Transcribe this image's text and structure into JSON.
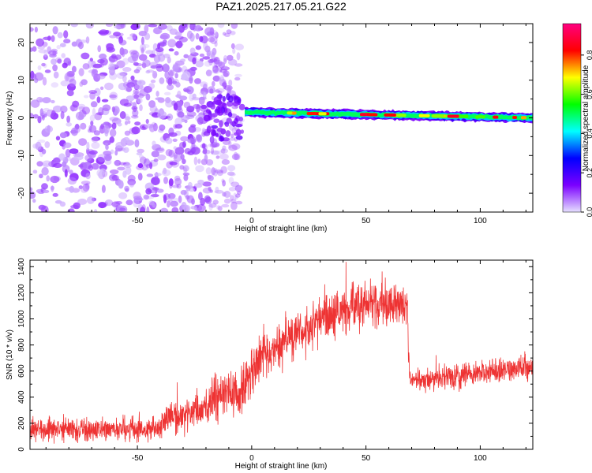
{
  "page_title": "PAZ1.2025.217.05.21.G22",
  "chart_data": [
    {
      "type": "heatmap",
      "xlabel": "Height of straight line (km)",
      "ylabel": "Frequency (Hz)",
      "xlim": [
        -97,
        123
      ],
      "ylim": [
        -25,
        25
      ],
      "xticks": [
        -50,
        0,
        50,
        100
      ],
      "yticks": [
        -20,
        -10,
        0,
        10,
        20
      ],
      "colorbar": {
        "label": "Normalized spectral amplitude",
        "range": [
          0,
          0.96
        ],
        "ticks": [
          "0.0",
          "0.2",
          "0.4",
          "0.6",
          "0.8"
        ],
        "tick_values": [
          0.0,
          0.2,
          0.4,
          0.6,
          0.8
        ],
        "colors": [
          "#e6e0ff",
          "#7b00ff",
          "#0000ff",
          "#00ffff",
          "#00ff00",
          "#ffff00",
          "#ff0000",
          "#ff0080"
        ]
      },
      "noise_region": {
        "x_range": [
          -97,
          -5
        ],
        "freq_range": [
          -25,
          25
        ],
        "amplitude_range": [
          0.02,
          0.12
        ]
      },
      "signal_line": {
        "x_start": -3,
        "x_end": 123,
        "frequency_at_start": 1.5,
        "frequency_at_end": 0.0,
        "frequency_halfwidth": 1.2,
        "peak_amplitude": 0.9
      }
    },
    {
      "type": "line",
      "xlabel": "Height of straight line (km)",
      "ylabel": "SNR (10 * v/v)",
      "xlim": [
        -97,
        123
      ],
      "ylim": [
        0,
        1450
      ],
      "xticks": [
        -50,
        0,
        50,
        100
      ],
      "yticks": [
        0,
        200,
        400,
        600,
        800,
        1000,
        1200,
        1400
      ],
      "series": [
        {
          "color": "#ee3333",
          "envelope": {
            "x": [
              -97,
              -60,
              -40,
              -39,
              -20,
              -18,
              -10,
              -5,
              0,
              5,
              10,
              20,
              30,
              40,
              50,
              60,
              68,
              69,
              70,
              80,
              90,
              100,
              110,
              123
            ],
            "mean": [
              150,
              150,
              160,
              230,
              310,
              380,
              420,
              450,
              600,
              720,
              800,
              900,
              990,
              1060,
              1100,
              1110,
              1120,
              560,
              540,
              540,
              560,
              590,
              610,
              630
            ],
            "spread": [
              80,
              80,
              80,
              100,
              110,
              130,
              150,
              160,
              180,
              180,
              170,
              160,
              160,
              160,
              160,
              160,
              150,
              80,
              80,
              80,
              80,
              80,
              80,
              80
            ]
          }
        }
      ]
    }
  ]
}
